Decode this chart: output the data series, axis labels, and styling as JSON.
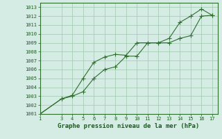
{
  "xlabel": "Graphe pression niveau de la mer (hPa)",
  "xlim": [
    1,
    17.5
  ],
  "ylim": [
    1001,
    1013.5
  ],
  "xticks": [
    1,
    3,
    4,
    5,
    6,
    7,
    8,
    9,
    10,
    11,
    12,
    13,
    14,
    15,
    16,
    17
  ],
  "yticks": [
    1001,
    1002,
    1003,
    1004,
    1005,
    1006,
    1007,
    1008,
    1009,
    1010,
    1011,
    1012,
    1013
  ],
  "line1_x": [
    1,
    3,
    4,
    5,
    6,
    7,
    8,
    9,
    10,
    11,
    12,
    13,
    14,
    15,
    16,
    17
  ],
  "line1_y": [
    1001,
    1002.7,
    1003.1,
    1005.0,
    1006.8,
    1007.4,
    1007.7,
    1007.6,
    1009.0,
    1009.0,
    1009.0,
    1009.5,
    1011.3,
    1012.0,
    1012.8,
    1012.1
  ],
  "line2_x": [
    1,
    3,
    4,
    5,
    6,
    7,
    8,
    9,
    10,
    11,
    12,
    13,
    14,
    15,
    16,
    17
  ],
  "line2_y": [
    1001,
    1002.7,
    1003.0,
    1003.5,
    1005.0,
    1006.0,
    1006.3,
    1007.5,
    1007.5,
    1009.0,
    1009.0,
    1009.0,
    1009.5,
    1009.8,
    1012.0,
    1012.1
  ],
  "line_color": "#2d6e2d",
  "marker_color": "#2d6e2d",
  "bg_color": "#d4ece3",
  "grid_color": "#a0c8b0",
  "axis_label_color": "#1a5c1a",
  "tick_color": "#1a5c1a",
  "spine_color": "#2d6e2d",
  "xlabel_fontsize": 6.5,
  "tick_fontsize": 5.0,
  "marker_size": 2.2
}
